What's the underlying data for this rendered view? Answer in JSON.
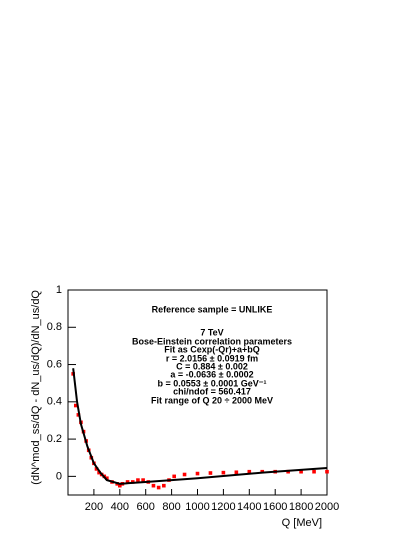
{
  "chart_data": {
    "type": "scatter",
    "x_label": "Q [MeV]",
    "y_label": "(dN^mod_ss/dQ - dN_us/dQ)/dN_us/dQ",
    "annotations": [
      "Reference sample = UNLIKE",
      "7 TeV",
      "Bose-Einstein correlation parameters",
      "Fit as  Cexp(-Qr)+a+bQ",
      "r = 2.0156 ± 0.0919 fm",
      "C = 0.884 ± 0.002",
      "a = -0.0636 ± 0.0002",
      "b = 0.0553 ± 0.0001 GeV⁻¹",
      "chi/ndof = 560.417",
      "Fit range of Q  20 ÷ 2000 MeV"
    ],
    "xlim": [
      0,
      2000
    ],
    "ylim": [
      -0.1,
      1
    ],
    "xticks": [
      200,
      400,
      600,
      800,
      1000,
      1200,
      1400,
      1600,
      1800,
      2000
    ],
    "yticks": [
      0,
      0.2,
      0.4,
      0.6,
      0.8,
      1
    ],
    "series": [
      {
        "color": "#ff0000",
        "x": [
          40,
          60,
          80,
          100,
          120,
          140,
          160,
          180,
          200,
          220,
          240,
          260,
          280,
          300,
          340,
          380,
          400,
          420,
          460,
          500,
          540,
          580,
          620,
          660,
          700,
          740,
          780,
          820,
          900,
          1000,
          1100,
          1200,
          1300,
          1400,
          1500,
          1600,
          1700,
          1800,
          1900,
          2000
        ],
        "values": [
          0.55,
          0.38,
          0.33,
          0.29,
          0.24,
          0.19,
          0.14,
          0.1,
          0.07,
          0.04,
          0.02,
          0.01,
          0.0,
          -0.01,
          -0.03,
          -0.04,
          -0.05,
          -0.04,
          -0.03,
          -0.03,
          -0.02,
          -0.02,
          -0.03,
          -0.05,
          -0.06,
          -0.05,
          -0.02,
          0.0,
          0.01,
          0.015,
          0.018,
          0.02,
          0.022,
          0.025,
          0.025,
          0.025,
          0.025,
          0.025,
          0.025,
          0.025
        ]
      },
      {
        "color": "#000000",
        "line": true,
        "x": [
          40,
          70,
          100,
          150,
          200,
          250,
          300,
          400,
          600,
          800,
          1000,
          1500,
          2000
        ],
        "values": [
          0.58,
          0.4,
          0.28,
          0.16,
          0.07,
          0.02,
          -0.02,
          -0.04,
          -0.03,
          -0.02,
          -0.01,
          0.02,
          0.045
        ]
      }
    ]
  }
}
